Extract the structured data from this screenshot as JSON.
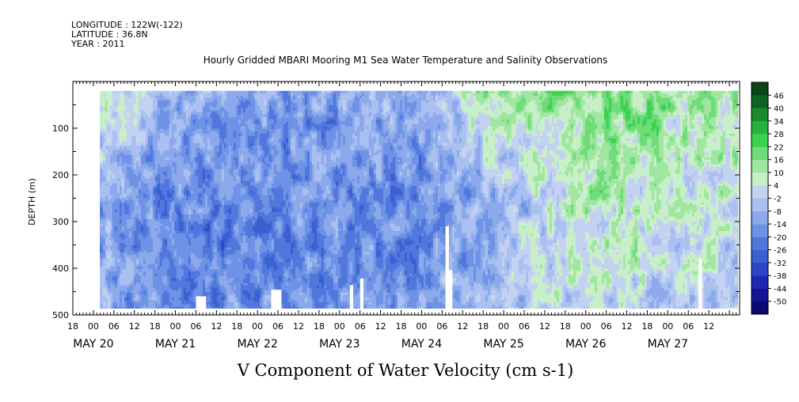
{
  "header": {
    "longitude": "LONGITUDE : 122W(-122)",
    "latitude": "LATITUDE : 36.8N",
    "year": "YEAR : 2011"
  },
  "title": "Hourly Gridded MBARI Mooring M1 Sea Water Temperature and Salinity Observations",
  "bottom_title": "V Component of Water Velocity (cm s-1)",
  "chart_data": {
    "type": "heatmap",
    "title": "Hourly Gridded MBARI Mooring M1 Sea Water Temperature and Salinity Observations",
    "xlabel": "",
    "ylabel": "DEPTH (m)",
    "colorbar_label": "V Component of Water Velocity (cm s-1)",
    "x_range_hours": [
      "2011-05-19 18:00",
      "2011-05-27 21:00"
    ],
    "y_range": [
      0,
      500
    ],
    "y_inverted": true,
    "depth_ticks": [
      100,
      200,
      300,
      400,
      500
    ],
    "hour_tick_labels": [
      "18",
      "00",
      "06",
      "12",
      "18",
      "00",
      "06",
      "12",
      "18",
      "00",
      "06",
      "12",
      "18",
      "00",
      "06",
      "12",
      "18",
      "00",
      "06",
      "12",
      "18",
      "00",
      "06",
      "12",
      "18",
      "00",
      "06",
      "12",
      "18",
      "00",
      "06",
      "12"
    ],
    "date_labels": [
      "MAY 20",
      "MAY 21",
      "MAY 22",
      "MAY 23",
      "MAY 24",
      "MAY 25",
      "MAY 26",
      "MAY 27"
    ],
    "colorbar_levels": [
      -50,
      -44,
      -38,
      -32,
      -26,
      -20,
      -14,
      -8,
      -2,
      4,
      10,
      16,
      22,
      28,
      34,
      40,
      46
    ],
    "colorbar_colors": [
      "#0a0a6e",
      "#141496",
      "#1e28b4",
      "#2d46c8",
      "#3c60d2",
      "#5078dc",
      "#6e92e6",
      "#8caaeb",
      "#aac0f0",
      "#c4d2f2",
      "#c8f0c8",
      "#a0e6a0",
      "#6edc78",
      "#3cd250",
      "#28b43c",
      "#198c2d",
      "#0f6423",
      "#0a4617"
    ],
    "depth_top_m": 20,
    "depth_bottom_m": 485,
    "data_start_date": "2011-05-20 00:00",
    "mean_v_by_day": [
      {
        "date": "MAY 20",
        "v_surface": 8,
        "v_mid": -12,
        "v_deep": -10
      },
      {
        "date": "MAY 21",
        "v_surface": -10,
        "v_mid": -18,
        "v_deep": -20
      },
      {
        "date": "MAY 22",
        "v_surface": -14,
        "v_mid": -20,
        "v_deep": -18
      },
      {
        "date": "MAY 23",
        "v_surface": -12,
        "v_mid": -18,
        "v_deep": -16
      },
      {
        "date": "MAY 24",
        "v_surface": -8,
        "v_mid": -20,
        "v_deep": -14
      },
      {
        "date": "MAY 25",
        "v_surface": 14,
        "v_mid": -8,
        "v_deep": -4
      },
      {
        "date": "MAY 26",
        "v_surface": 18,
        "v_mid": 10,
        "v_deep": 4
      },
      {
        "date": "MAY 27",
        "v_surface": 12,
        "v_mid": 6,
        "v_deep": -2
      }
    ],
    "data_gaps": [
      {
        "start": "2011-05-21 06:00",
        "end": "2011-05-21 09:00",
        "depth_from": 460
      },
      {
        "start": "2011-05-22 04:00",
        "end": "2011-05-22 07:00",
        "depth_from": 446
      },
      {
        "start": "2011-05-23 03:00",
        "end": "2011-05-23 04:00",
        "depth_from": 436
      },
      {
        "start": "2011-05-23 06:00",
        "end": "2011-05-23 07:00",
        "depth_from": 422
      },
      {
        "start": "2011-05-24 07:00",
        "end": "2011-05-24 08:00",
        "depth_from": 310
      },
      {
        "start": "2011-05-24 08:00",
        "end": "2011-05-24 09:00",
        "depth_from": 404
      },
      {
        "start": "2011-05-27 09:00",
        "end": "2011-05-27 10:00",
        "depth_from": 380
      }
    ]
  }
}
